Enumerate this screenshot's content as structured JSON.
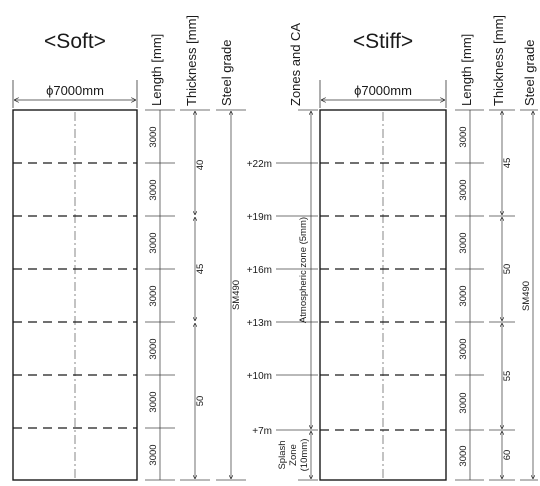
{
  "soft": {
    "title": "<Soft>",
    "diameter": "ϕ7000mm",
    "headers": {
      "length": "Length [mm]",
      "thickness": "Thickness [mm]",
      "grade": "Steel grade"
    },
    "segments": [
      "3000",
      "3000",
      "3000",
      "3000",
      "3000",
      "3000",
      "3000"
    ],
    "thickness": [
      "40",
      "45",
      "50"
    ],
    "grade": "SM490"
  },
  "stiff": {
    "title": "<Stiff>",
    "diameter": "ϕ7000mm",
    "zones_header": "Zones and CA",
    "headers": {
      "length": "Length [mm]",
      "thickness": "Thickness [mm]",
      "grade": "Steel grade"
    },
    "segments": [
      "3000",
      "3000",
      "3000",
      "3000",
      "3000",
      "3000",
      "3000"
    ],
    "thickness": [
      "45",
      "50",
      "55",
      "60"
    ],
    "grade": "SM490",
    "elevations": [
      "+22m",
      "+19m",
      "+16m",
      "+13m",
      "+10m",
      "+7m"
    ],
    "zone_atmospheric": "Atmospheric zone (5mm)",
    "zone_splash": [
      "Splash",
      "Zone",
      "(10mm)"
    ]
  }
}
